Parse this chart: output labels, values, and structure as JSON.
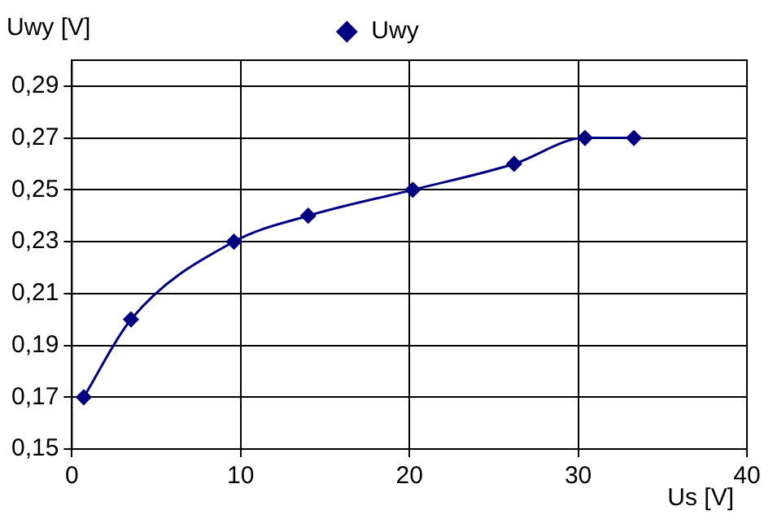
{
  "chart_data": {
    "type": "line",
    "xlabel": "Us [V]",
    "ylabel": "Uwy [V]",
    "x": [
      0.7,
      3.5,
      9.6,
      14,
      20.2,
      26.2,
      30.4,
      33.3
    ],
    "series": [
      {
        "name": "Uwy",
        "color": "#000080",
        "values": [
          0.17,
          0.2,
          0.23,
          0.24,
          0.25,
          0.26,
          0.27,
          0.27
        ]
      }
    ],
    "xlim": [
      0,
      40
    ],
    "xticks": [
      0,
      10,
      20,
      30,
      40
    ],
    "ylim": [
      0.15,
      0.3
    ],
    "yticks": [
      {
        "value": 0.15,
        "label": "0,15"
      },
      {
        "value": 0.17,
        "label": "0,17"
      },
      {
        "value": 0.19,
        "label": "0,19"
      },
      {
        "value": 0.21,
        "label": "0,21"
      },
      {
        "value": 0.23,
        "label": "0,23"
      },
      {
        "value": 0.25,
        "label": "0,25"
      },
      {
        "value": 0.27,
        "label": "0,27"
      },
      {
        "value": 0.29,
        "label": "0,29"
      }
    ],
    "grid": true,
    "legend": "top",
    "marker": "diamond",
    "line_style": "solid"
  }
}
